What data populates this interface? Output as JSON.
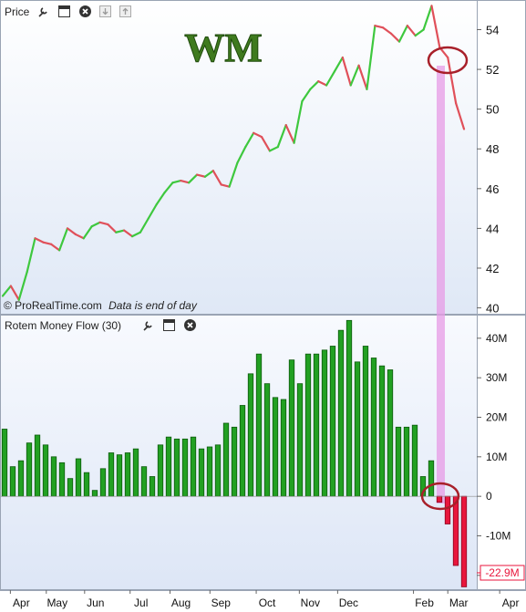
{
  "price_panel": {
    "label": "Price",
    "symbol": "WM",
    "copyright": "© ProRealTime.com",
    "note": "Data is end of day",
    "icons": [
      "wrench-icon",
      "window-icon",
      "close-icon",
      "download-icon",
      "upload-icon"
    ]
  },
  "flow_panel": {
    "label": "Rotem Money Flow (30)",
    "icons": [
      "wrench-icon",
      "window-icon",
      "close-icon"
    ],
    "last_value": "-22.9M"
  },
  "colors": {
    "up_line": "#3ec83e",
    "down_line": "#e0505a",
    "bar_up": "#22a022",
    "bar_down": "#e8163c",
    "highlight": "#e79be6",
    "circle": "#b0202a",
    "symbol_fill": "#3f7a1e"
  },
  "chart_data": [
    {
      "type": "line",
      "title": "Price",
      "x_labels": [
        "Apr",
        "May",
        "Jun",
        "Jul",
        "Aug",
        "Sep",
        "Oct",
        "Nov",
        "Dec",
        "Feb",
        "Mar",
        "Apr"
      ],
      "y_ticks": [
        40,
        42,
        44,
        46,
        48,
        50,
        52,
        54
      ],
      "ylim": [
        39.75,
        55.4
      ],
      "grid": false,
      "values": [
        40.6,
        41.1,
        40.4,
        41.8,
        43.5,
        43.3,
        43.2,
        42.9,
        44.0,
        43.7,
        43.5,
        44.1,
        44.3,
        44.2,
        43.8,
        43.9,
        43.6,
        43.8,
        44.5,
        45.2,
        45.8,
        46.3,
        46.4,
        46.3,
        46.7,
        46.6,
        46.9,
        46.2,
        46.1,
        47.3,
        48.1,
        48.8,
        48.6,
        47.9,
        48.1,
        49.2,
        48.3,
        50.4,
        51.0,
        51.4,
        51.2,
        51.9,
        52.6,
        51.2,
        52.2,
        51.0,
        54.2,
        54.1,
        53.8,
        53.4,
        54.2,
        53.7,
        54.0,
        55.2,
        53.1,
        52.6,
        50.3,
        49.0
      ]
    },
    {
      "type": "bar",
      "title": "Rotem Money Flow (30)",
      "unit": "M",
      "y_ticks": [
        "40M",
        "30M",
        "20M",
        "10M",
        "0",
        "-10M",
        "-20M"
      ],
      "ylim": [
        -23.5,
        45.5
      ],
      "grid": false,
      "values": [
        17,
        7.5,
        9,
        13.5,
        15.5,
        13,
        10,
        8.5,
        4.5,
        9.5,
        6,
        1.5,
        7,
        11,
        10.5,
        11,
        12,
        7.5,
        5,
        13,
        15,
        14.5,
        14.5,
        15,
        12,
        12.5,
        13,
        18.5,
        17.5,
        23,
        31,
        36,
        28.5,
        25,
        24.5,
        34.5,
        28.5,
        36,
        36,
        37,
        38,
        42,
        44.5,
        34,
        38,
        35,
        33,
        32,
        17.5,
        17.5,
        18,
        5,
        9,
        -1.5,
        -7,
        -17.5,
        -22.9
      ],
      "last_label": "-22.9M"
    }
  ]
}
